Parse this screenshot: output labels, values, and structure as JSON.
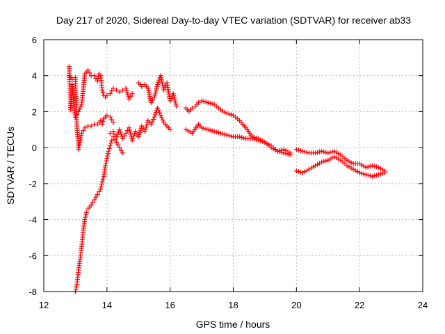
{
  "chart_data": {
    "type": "scatter",
    "title": "Day 217 of 2020, Sidereal Day-to-day VTEC variation (SDTVAR) for receiver ab33",
    "xlabel": "GPS time / hours",
    "ylabel": "SDTVAR / TECUs",
    "xlim": [
      12,
      24
    ],
    "ylim": [
      -8,
      6
    ],
    "xticks": [
      "12",
      "14",
      "16",
      "18",
      "20",
      "22",
      "24"
    ],
    "yticks": [
      "-8",
      "-6",
      "-4",
      "-2",
      "0",
      "2",
      "4",
      "6"
    ],
    "grid": true,
    "legend": "none",
    "marker": "+",
    "color": "#ff0000",
    "series": [
      {
        "name": "upper-left track",
        "x": [
          12.8,
          12.85,
          12.9,
          12.95,
          13.0,
          13.1,
          13.2,
          13.3,
          13.4,
          13.5,
          13.6,
          13.7,
          13.75,
          13.8,
          13.85,
          13.9,
          13.95,
          14.0,
          14.1,
          14.2,
          14.3,
          14.4,
          14.5,
          14.6,
          14.7,
          14.8
        ],
        "y": [
          4.5,
          2.1,
          3.5,
          2.3,
          1.7,
          2.0,
          2.4,
          4.1,
          4.3,
          4.0,
          4.0,
          3.7,
          4.1,
          4.0,
          3.2,
          2.9,
          2.8,
          2.9,
          3.0,
          3.3,
          3.2,
          3.1,
          3.2,
          3.3,
          2.7,
          3.0
        ]
      },
      {
        "name": "upper-left middle track",
        "x": [
          12.8,
          12.9,
          13.0,
          13.05,
          13.1,
          13.2,
          13.3,
          13.4,
          13.5,
          13.6,
          13.7,
          13.8,
          13.85,
          13.9,
          14.0,
          14.1,
          14.2
        ],
        "y": [
          4.0,
          3.8,
          3.9,
          1.2,
          -0.1,
          0.8,
          1.1,
          1.2,
          1.2,
          1.3,
          1.3,
          1.5,
          1.3,
          1.6,
          1.8,
          1.7,
          1.4
        ]
      },
      {
        "name": "steep rising track",
        "x": [
          13.0,
          13.05,
          13.1,
          13.15,
          13.2,
          13.25,
          13.3,
          13.35,
          13.4,
          13.5,
          13.6,
          13.7,
          13.8,
          13.85,
          13.9,
          13.95,
          14.0,
          14.05,
          14.1,
          14.15,
          14.2,
          14.3,
          14.4,
          14.5
        ],
        "y": [
          -8.0,
          -7.6,
          -6.8,
          -6.2,
          -5.5,
          -4.6,
          -4.0,
          -3.6,
          -3.4,
          -3.2,
          -2.9,
          -2.6,
          -2.3,
          -1.9,
          -1.6,
          -1.0,
          -0.6,
          -0.2,
          0.1,
          0.4,
          0.6,
          0.3,
          0.0,
          -0.3
        ]
      },
      {
        "name": "middle cluster",
        "x": [
          14.1,
          14.2,
          14.3,
          14.4,
          14.5,
          14.6,
          14.7,
          14.8,
          14.9,
          15.0,
          15.1,
          15.2,
          15.3,
          15.4,
          15.5,
          15.6,
          15.7,
          15.8,
          15.9,
          16.0
        ],
        "y": [
          0.8,
          0.9,
          0.6,
          1.0,
          0.5,
          0.8,
          1.1,
          0.4,
          0.9,
          0.6,
          1.2,
          0.9,
          1.5,
          1.3,
          1.7,
          2.2,
          1.8,
          1.4,
          1.2,
          1.0
        ]
      },
      {
        "name": "upper middle track",
        "x": [
          15.0,
          15.1,
          15.2,
          15.3,
          15.4,
          15.5,
          15.6,
          15.7,
          15.8,
          15.9,
          16.0,
          16.1,
          16.2
        ],
        "y": [
          3.6,
          3.4,
          3.5,
          3.3,
          2.5,
          2.8,
          3.5,
          4.0,
          3.2,
          3.6,
          2.6,
          3.0,
          2.3
        ]
      },
      {
        "name": "main upper afternoon track",
        "x": [
          16.5,
          16.6,
          16.7,
          16.8,
          16.9,
          17.0,
          17.2,
          17.4,
          17.6,
          17.8,
          18.0,
          18.2,
          18.4,
          18.6,
          18.8,
          19.0,
          19.2,
          19.4,
          19.6,
          19.8
        ],
        "y": [
          2.2,
          2.0,
          2.2,
          2.3,
          2.5,
          2.6,
          2.5,
          2.4,
          2.1,
          1.9,
          1.8,
          1.5,
          1.1,
          0.6,
          0.5,
          0.3,
          0.0,
          -0.2,
          -0.1,
          -0.3
        ]
      },
      {
        "name": "main lower afternoon track",
        "x": [
          16.5,
          16.7,
          16.9,
          17.0,
          17.2,
          17.4,
          17.6,
          17.8,
          18.0,
          18.2,
          18.4,
          18.6,
          18.8,
          19.0,
          19.2,
          19.4,
          19.6,
          19.8
        ],
        "y": [
          1.0,
          0.8,
          1.3,
          1.1,
          1.0,
          0.9,
          0.8,
          0.7,
          0.6,
          0.6,
          0.5,
          0.5,
          0.4,
          0.3,
          0.1,
          -0.2,
          -0.3,
          -0.4
        ]
      },
      {
        "name": "evening upper track",
        "x": [
          20.0,
          20.2,
          20.4,
          20.6,
          20.8,
          21.0,
          21.2,
          21.4,
          21.6,
          21.8,
          22.0,
          22.2,
          22.4,
          22.6,
          22.8
        ],
        "y": [
          -0.1,
          -0.2,
          -0.3,
          -0.3,
          -0.2,
          -0.3,
          -0.2,
          -0.4,
          -0.7,
          -0.9,
          -0.9,
          -1.1,
          -1.0,
          -1.1,
          -1.3
        ]
      },
      {
        "name": "evening lower track",
        "x": [
          20.0,
          20.2,
          20.4,
          20.6,
          20.8,
          21.0,
          21.2,
          21.4,
          21.6,
          21.8,
          22.0,
          22.2,
          22.4,
          22.6,
          22.8
        ],
        "y": [
          -1.3,
          -1.4,
          -1.2,
          -1.0,
          -0.8,
          -0.7,
          -0.5,
          -0.7,
          -1.0,
          -1.2,
          -1.4,
          -1.5,
          -1.6,
          -1.5,
          -1.4
        ]
      }
    ]
  }
}
